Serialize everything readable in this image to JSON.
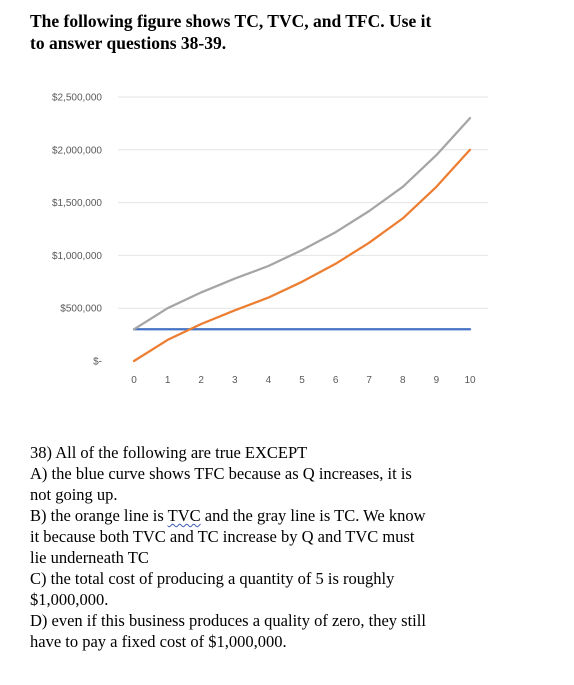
{
  "header": {
    "line1": "The following figure shows TC, TVC, and TFC. Use it",
    "line2": "to answer questions 38-39."
  },
  "chart_data": {
    "type": "line",
    "x": [
      0,
      1,
      2,
      3,
      4,
      5,
      6,
      7,
      8,
      9,
      10
    ],
    "x_tick_labels": [
      "0",
      "1",
      "2",
      "3",
      "4",
      "5",
      "6",
      "7",
      "8",
      "9",
      "10"
    ],
    "y_tick_labels": [
      "$-",
      "$500,000",
      "$1,000,000",
      "$1,500,000",
      "$2,000,000",
      "$2,500,000"
    ],
    "y_ticks": [
      0,
      500000,
      1000000,
      1500000,
      2000000,
      2500000
    ],
    "ylim": [
      0,
      2500000
    ],
    "xlim": [
      0,
      10
    ],
    "grid": true,
    "legend": "none",
    "series": [
      {
        "color": "#4472c4",
        "values": [
          300000,
          300000,
          300000,
          300000,
          300000,
          300000,
          300000,
          300000,
          300000,
          300000,
          300000
        ]
      },
      {
        "color": "#ed7d31",
        "values": [
          0,
          200000,
          350000,
          480000,
          600000,
          750000,
          920000,
          1120000,
          1350000,
          1650000,
          2000000
        ]
      },
      {
        "color": "#a5a5a5",
        "values": [
          300000,
          500000,
          650000,
          780000,
          900000,
          1050000,
          1220000,
          1420000,
          1650000,
          1950000,
          2300000
        ]
      }
    ]
  },
  "question": {
    "stem": "38) All of the following are true EXCEPT",
    "a1": "A) the blue curve shows TFC because as Q increases, it is",
    "a2": "not going up.",
    "b1_pre": "B) the orange line is ",
    "b1_mark": "TVC",
    "b1_post": " and the gray line is TC. We know",
    "b2": "it because both TVC and TC increase by Q and TVC must",
    "b3": "lie underneath TC",
    "c1": "C) the total cost of producing a quantity of 5 is roughly",
    "c2": "$1,000,000.",
    "d1": "D) even if this business produces a quality of zero, they still",
    "d2": "have to pay a fixed cost of $1,000,000."
  }
}
